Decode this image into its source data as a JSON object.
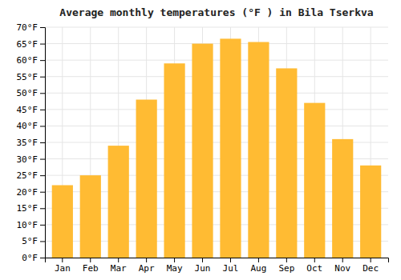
{
  "chart_data": {
    "type": "bar",
    "title": "Average monthly temperatures (°F ) in Bila Tserkva",
    "categories": [
      "Jan",
      "Feb",
      "Mar",
      "Apr",
      "May",
      "Jun",
      "Jul",
      "Aug",
      "Sep",
      "Oct",
      "Nov",
      "Dec"
    ],
    "values": [
      22,
      25,
      34,
      48,
      59,
      65,
      66.5,
      65.5,
      57.5,
      47,
      36,
      28
    ],
    "color": "#FFBB33",
    "ylim": [
      0,
      70
    ],
    "yticks": [
      {
        "value": 0,
        "label": "0°F"
      },
      {
        "value": 5,
        "label": "5°F"
      },
      {
        "value": 10,
        "label": "10°F"
      },
      {
        "value": 15,
        "label": "15°F"
      },
      {
        "value": 20,
        "label": "20°F"
      },
      {
        "value": 25,
        "label": "25°F"
      },
      {
        "value": 30,
        "label": "30°F"
      },
      {
        "value": 35,
        "label": "35°F"
      },
      {
        "value": 40,
        "label": "40°F"
      },
      {
        "value": 45,
        "label": "45°F"
      },
      {
        "value": 50,
        "label": "50°F"
      },
      {
        "value": 55,
        "label": "55°F"
      },
      {
        "value": 60,
        "label": "60°F"
      },
      {
        "value": 65,
        "label": "65°F"
      },
      {
        "value": 70,
        "label": "70°F"
      }
    ],
    "grid": true
  }
}
